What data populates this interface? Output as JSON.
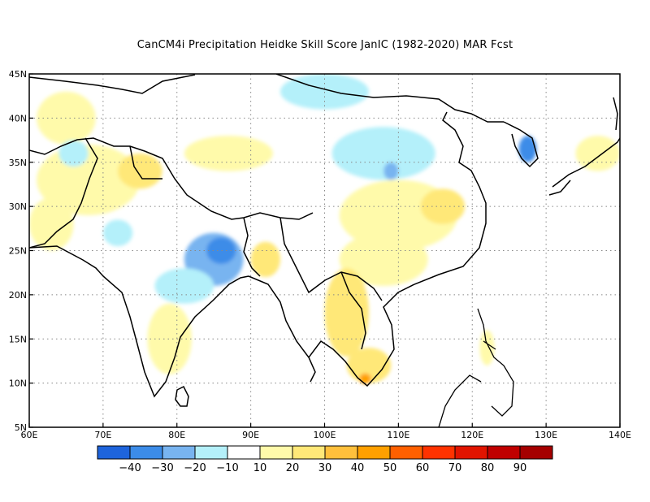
{
  "title": "CanCM4i  Precipitation Heidke Skill Score JanIC (1982-2020) MAR Fcst",
  "map": {
    "lon_range": [
      60,
      140
    ],
    "lat_range": [
      5,
      45
    ],
    "lon_ticks": [
      {
        "value": 60,
        "label": "60E"
      },
      {
        "value": 70,
        "label": "70E"
      },
      {
        "value": 80,
        "label": "80E"
      },
      {
        "value": 90,
        "label": "90E"
      },
      {
        "value": 100,
        "label": "100E"
      },
      {
        "value": 110,
        "label": "110E"
      },
      {
        "value": 120,
        "label": "120E"
      },
      {
        "value": 130,
        "label": "130E"
      },
      {
        "value": 140,
        "label": "140E"
      }
    ],
    "lat_ticks": [
      {
        "value": 5,
        "label": "5N"
      },
      {
        "value": 10,
        "label": "10N"
      },
      {
        "value": 15,
        "label": "15N"
      },
      {
        "value": 20,
        "label": "20N"
      },
      {
        "value": 25,
        "label": "25N"
      },
      {
        "value": 30,
        "label": "30N"
      },
      {
        "value": 35,
        "label": "35N"
      },
      {
        "value": 40,
        "label": "40N"
      },
      {
        "value": 45,
        "label": "45N"
      }
    ],
    "grid": "dotted"
  },
  "colorbar": {
    "colors": [
      "#1e64dc",
      "#3c8ce8",
      "#78b4f0",
      "#b4f0fa",
      "#ffffff",
      "#fffaaa",
      "#ffe878",
      "#ffc03c",
      "#ffa000",
      "#ff6000",
      "#ff3200",
      "#e11400",
      "#c00000",
      "#a50000"
    ],
    "labels": [
      "-40",
      "-30",
      "-20",
      "-10",
      "10",
      "20",
      "30",
      "40",
      "50",
      "60",
      "70",
      "80",
      "90"
    ]
  },
  "regions": [
    {
      "name": "northwest-india-pakistan-positive",
      "level": 20,
      "lon": 68,
      "lat": 33,
      "rx": 7,
      "ry": 4
    },
    {
      "name": "kashmir-positive",
      "level": 30,
      "lon": 75,
      "lat": 34,
      "rx": 3,
      "ry": 2
    },
    {
      "name": "iran-positive",
      "level": 20,
      "lon": 63,
      "lat": 28,
      "rx": 3,
      "ry": 3
    },
    {
      "name": "central-asia-positive",
      "level": 20,
      "lon": 65,
      "lat": 40,
      "rx": 4,
      "ry": 3
    },
    {
      "name": "tibet-positive",
      "level": 20,
      "lon": 87,
      "lat": 36,
      "rx": 6,
      "ry": 2
    },
    {
      "name": "central-china-positive",
      "level": 20,
      "lon": 110,
      "lat": 29,
      "rx": 8,
      "ry": 4
    },
    {
      "name": "east-china-positive",
      "level": 30,
      "lon": 116,
      "lat": 30,
      "rx": 3,
      "ry": 2
    },
    {
      "name": "south-china-positive",
      "level": 20,
      "lon": 108,
      "lat": 24,
      "rx": 6,
      "ry": 3
    },
    {
      "name": "indochina-positive",
      "level": 30,
      "lon": 103,
      "lat": 18,
      "rx": 3,
      "ry": 5
    },
    {
      "name": "mekong-positive",
      "level": 30,
      "lon": 106,
      "lat": 12,
      "rx": 3,
      "ry": 2
    },
    {
      "name": "mekong-delta-positive",
      "level": 50,
      "lon": 105.5,
      "lat": 10.5,
      "rx": 0.8,
      "ry": 0.6
    },
    {
      "name": "india-south-positive",
      "level": 20,
      "lon": 79,
      "lat": 15,
      "rx": 3,
      "ry": 4
    },
    {
      "name": "bangladesh-positive",
      "level": 30,
      "lon": 92,
      "lat": 24,
      "rx": 2,
      "ry": 2
    },
    {
      "name": "east-india-negative",
      "level": -20,
      "lon": 85,
      "lat": 24,
      "rx": 4,
      "ry": 3
    },
    {
      "name": "east-india-core-negative",
      "level": -30,
      "lon": 86,
      "lat": 25,
      "rx": 2,
      "ry": 1.5
    },
    {
      "name": "central-india-negative",
      "level": -10,
      "lon": 81,
      "lat": 21,
      "rx": 4,
      "ry": 2
    },
    {
      "name": "north-china-negative",
      "level": -10,
      "lon": 108,
      "lat": 36,
      "rx": 7,
      "ry": 3
    },
    {
      "name": "north-china-core-negative",
      "level": -20,
      "lon": 109,
      "lat": 34,
      "rx": 1,
      "ry": 1
    },
    {
      "name": "korea-negative",
      "level": -30,
      "lon": 127.5,
      "lat": 36.5,
      "rx": 1.2,
      "ry": 1.5
    },
    {
      "name": "mongolia-negative",
      "level": -10,
      "lon": 100,
      "lat": 43,
      "rx": 6,
      "ry": 2
    },
    {
      "name": "west-negative",
      "level": -10,
      "lon": 66,
      "lat": 36,
      "rx": 2,
      "ry": 1.5
    },
    {
      "name": "arabian-sea-negative",
      "level": -10,
      "lon": 72,
      "lat": 27,
      "rx": 2,
      "ry": 1.5
    },
    {
      "name": "japan-positive",
      "level": 20,
      "lon": 137,
      "lat": 36,
      "rx": 3,
      "ry": 2
    },
    {
      "name": "philippines-positive",
      "level": 20,
      "lon": 122,
      "lat": 14,
      "rx": 1,
      "ry": 2
    }
  ]
}
